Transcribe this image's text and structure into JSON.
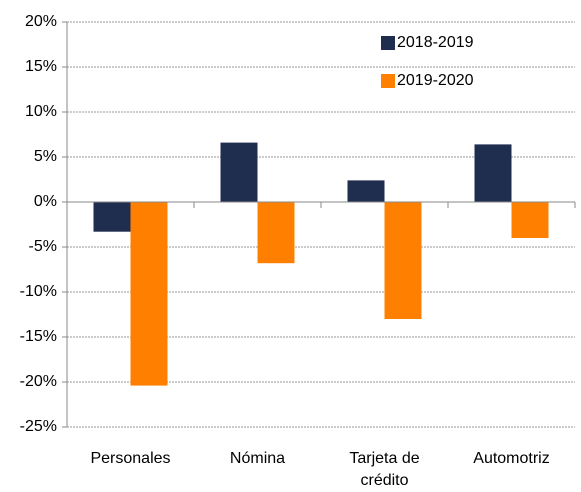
{
  "chart_data": {
    "type": "bar",
    "categories": [
      "Personales",
      "Nómina",
      "Tarjeta de crédito",
      "Automotriz"
    ],
    "series": [
      {
        "name": "2018-2019",
        "color": "#1f2d4e",
        "values": [
          -3.3,
          6.6,
          2.4,
          6.4
        ]
      },
      {
        "name": "2019-2020",
        "color": "#ff8000",
        "values": [
          -20.4,
          -6.8,
          -13,
          -4
        ]
      }
    ],
    "ylim": [
      -25,
      20
    ],
    "yticks": [
      {
        "value": -25,
        "label": "-25%"
      },
      {
        "value": -20,
        "label": "-20%"
      },
      {
        "value": -15,
        "label": "-15%"
      },
      {
        "value": -10,
        "label": "-10%"
      },
      {
        "value": -5,
        "label": "-5%"
      },
      {
        "value": 0,
        "label": "0%"
      },
      {
        "value": 5,
        "label": "5%"
      },
      {
        "value": 10,
        "label": "10%"
      },
      {
        "value": 15,
        "label": "15%"
      },
      {
        "value": 20,
        "label": "20%"
      }
    ],
    "grid": true,
    "legend": "top-right"
  }
}
